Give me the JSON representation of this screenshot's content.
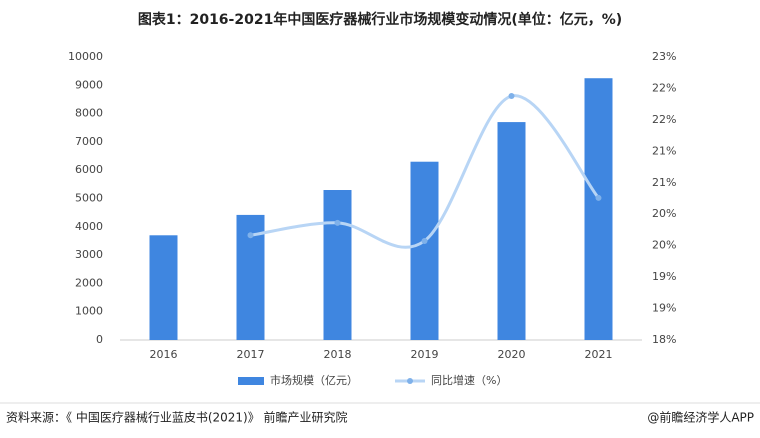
{
  "chart_data": {
    "type": "bar_line",
    "title": "图表1：2016-2021年中国医疗器械行业市场规模变动情况(单位：亿元，%)",
    "categories": [
      "2016",
      "2017",
      "2018",
      "2019",
      "2020",
      "2021"
    ],
    "series": [
      {
        "name": "市场规模（亿元）",
        "color": "#3f86e0",
        "type": "bar",
        "values": [
          3700,
          4420,
          5300,
          6300,
          7700,
          9250
        ]
      },
      {
        "name": "同比增速（%）",
        "color": "#b8d5f5",
        "type": "line",
        "axis": "y2",
        "values": [
          null,
          19.85,
          20.07,
          19.75,
          22.31,
          20.51
        ]
      }
    ],
    "ylim": [
      0,
      10000
    ],
    "yticks": [
      0,
      1000,
      2000,
      3000,
      4000,
      5000,
      6000,
      7000,
      8000,
      9000,
      10000
    ],
    "y2lim": [
      18,
      23
    ],
    "y2ticks": [
      {
        "value": 18,
        "label": "18%"
      },
      {
        "value": 18.556,
        "label": "19%"
      },
      {
        "value": 19.111,
        "label": "19%"
      },
      {
        "value": 19.667,
        "label": "20%"
      },
      {
        "value": 20.222,
        "label": "20%"
      },
      {
        "value": 20.778,
        "label": "21%"
      },
      {
        "value": 21.333,
        "label": "21%"
      },
      {
        "value": 21.889,
        "label": "22%"
      },
      {
        "value": 22.444,
        "label": "22%"
      },
      {
        "value": 23,
        "label": "23%"
      }
    ],
    "legend": "bottom",
    "source": "资料来源：《 中国医疗器械行业蓝皮书(2021)》 前瞻产业研究院",
    "credit": "@前瞻经济学人APP"
  }
}
